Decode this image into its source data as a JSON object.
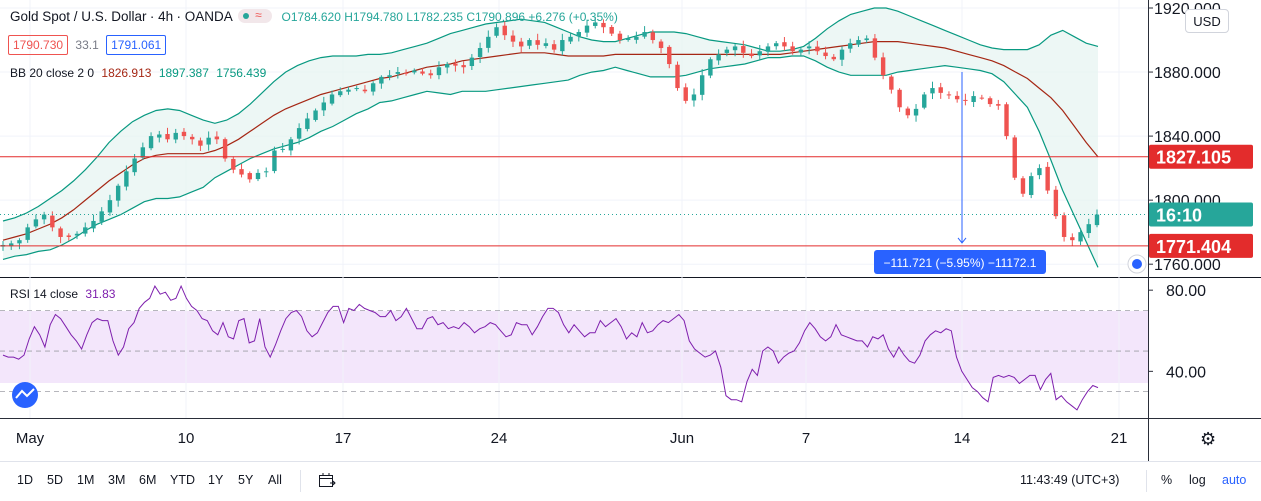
{
  "header": {
    "symbol": "Gold Spot / U.S. Dollar",
    "interval": "4h",
    "exchange": "OANDA",
    "open": "O1784.620",
    "high": "H1794.780",
    "low": "L1782.235",
    "close": "C1790.896",
    "change": "+6.276 (+0.35%)",
    "sell": "1790.730",
    "spread": "33.1",
    "buy": "1791.061"
  },
  "bb_legend": {
    "name": "BB 20 close 2 0",
    "basis": "1826.913",
    "upper": "1897.387",
    "lower": "1756.439"
  },
  "rsi_legend": {
    "name": "RSI 14 close",
    "value": "31.83"
  },
  "currency_button": "USD",
  "measure_label": "−111.721 (−5.95%) −11172.1",
  "price_labels": {
    "upper_line": "1827.105",
    "countdown": "16:10",
    "lower_line": "1771.404"
  },
  "colors": {
    "up": "#26a69a",
    "down": "#ef5350",
    "bb": "#089981",
    "basis": "#a52714",
    "rsi": "#7e1fad",
    "rsi_band": "#f3e6fb",
    "hline": "#e32c2c",
    "measure": "#2962ff"
  },
  "bottom_bar": {
    "timeframes": [
      "1D",
      "5D",
      "1M",
      "3M",
      "6M",
      "YTD",
      "1Y",
      "5Y",
      "All"
    ],
    "clock": "11:43:49 (UTC+3)",
    "percent": "%",
    "log": "log",
    "auto": "auto"
  },
  "chart_data": [
    {
      "type": "candlestick",
      "title": "Gold Spot / U.S. Dollar · 4h · OANDA",
      "x_ticks": [
        "May",
        "10",
        "17",
        "24",
        "Jun",
        "7",
        "14",
        "21"
      ],
      "y_ticks": [
        "1920.000",
        "1880.000",
        "1840.000",
        "1800.000",
        "1760.000"
      ],
      "ylim": [
        1752,
        1925
      ],
      "horizontal_lines": [
        1827.105,
        1771.404
      ],
      "series": [
        {
          "name": "Close",
          "values": [
            1772,
            1773,
            1775,
            1783,
            1788,
            1791,
            1783,
            1777,
            1777,
            1779,
            1783,
            1787,
            1793,
            1800,
            1809,
            1818,
            1826,
            1833,
            1840,
            1841,
            1838,
            1842,
            1840,
            1838,
            1834,
            1839,
            1838,
            1826,
            1819,
            1816,
            1813,
            1817,
            1818,
            1831,
            1832,
            1838,
            1845,
            1851,
            1856,
            1861,
            1866,
            1868,
            1869,
            1870,
            1868,
            1873,
            1877,
            1878,
            1880,
            1879,
            1881,
            1879,
            1878,
            1883,
            1885,
            1884,
            1883,
            1889,
            1895,
            1902,
            1908,
            1903,
            1899,
            1896,
            1900,
            1897,
            1898,
            1894,
            1900,
            1902,
            1905,
            1909,
            1911,
            1908,
            1904,
            1900,
            1901,
            1902,
            1905,
            1900,
            1895,
            1885,
            1870,
            1862,
            1866,
            1878,
            1888,
            1891,
            1894,
            1896,
            1892,
            1890,
            1893,
            1896,
            1898,
            1896,
            1893,
            1894,
            1896,
            1893,
            1890,
            1888,
            1894,
            1898,
            1900,
            1901,
            1889,
            1878,
            1869,
            1858,
            1853,
            1857,
            1866,
            1870,
            1867,
            1866,
            1863,
            1862,
            1865,
            1864,
            1860,
            1859,
            1840,
            1814,
            1804,
            1815,
            1820,
            1806,
            1790,
            1777,
            1775,
            1780,
            1785,
            1791
          ]
        },
        {
          "name": "BB upper",
          "values": [
            1787,
            1789,
            1792,
            1796,
            1801,
            1806,
            1812,
            1819,
            1827,
            1836,
            1843,
            1849,
            1853,
            1856,
            1857,
            1856,
            1853,
            1850,
            1848,
            1850,
            1854,
            1860,
            1867,
            1874,
            1880,
            1884,
            1887,
            1889,
            1890,
            1890,
            1890,
            1891,
            1891,
            1892,
            1894,
            1896,
            1898,
            1901,
            1904,
            1906,
            1908,
            1910,
            1911,
            1912,
            1913,
            1912,
            1911,
            1908,
            1905,
            1902,
            1900,
            1899,
            1899,
            1901,
            1903,
            1905,
            1905,
            1905,
            1904,
            1902,
            1900,
            1899,
            1898,
            1897,
            1895,
            1893,
            1893,
            1894,
            1896,
            1901,
            1907,
            1912,
            1916,
            1918,
            1920,
            1920,
            1918,
            1915,
            1912,
            1909,
            1906,
            1903,
            1900,
            1897,
            1895,
            1894,
            1894,
            1894,
            1897,
            1903,
            1906,
            1902,
            1898,
            1896
          ]
        },
        {
          "name": "BB basis",
          "values": [
            1775,
            1777,
            1779,
            1782,
            1785,
            1789,
            1794,
            1800,
            1806,
            1812,
            1817,
            1822,
            1826,
            1828,
            1829,
            1829,
            1829,
            1829,
            1831,
            1834,
            1838,
            1843,
            1848,
            1853,
            1857,
            1860,
            1863,
            1866,
            1868,
            1870,
            1872,
            1874,
            1876,
            1877,
            1879,
            1881,
            1883,
            1884,
            1885,
            1887,
            1888,
            1889,
            1890,
            1891,
            1892,
            1892,
            1892,
            1891,
            1890,
            1890,
            1890,
            1890,
            1891,
            1891,
            1891,
            1891,
            1891,
            1891,
            1891,
            1891,
            1891,
            1891,
            1891,
            1891,
            1891,
            1891,
            1891,
            1892,
            1893,
            1894,
            1895,
            1896,
            1897,
            1898,
            1899,
            1899,
            1899,
            1898,
            1897,
            1896,
            1895,
            1893,
            1891,
            1889,
            1887,
            1884,
            1880,
            1876,
            1870,
            1864,
            1856,
            1846,
            1836,
            1827
          ]
        },
        {
          "name": "BB lower",
          "values": [
            1763,
            1765,
            1766,
            1768,
            1769,
            1772,
            1776,
            1781,
            1785,
            1788,
            1791,
            1795,
            1799,
            1801,
            1801,
            1802,
            1805,
            1808,
            1814,
            1818,
            1822,
            1826,
            1829,
            1832,
            1834,
            1836,
            1839,
            1843,
            1846,
            1850,
            1854,
            1857,
            1861,
            1862,
            1864,
            1866,
            1868,
            1867,
            1866,
            1868,
            1868,
            1868,
            1869,
            1870,
            1871,
            1872,
            1873,
            1874,
            1875,
            1878,
            1880,
            1881,
            1883,
            1881,
            1879,
            1877,
            1877,
            1877,
            1878,
            1880,
            1882,
            1883,
            1884,
            1885,
            1887,
            1889,
            1889,
            1890,
            1890,
            1887,
            1883,
            1880,
            1878,
            1878,
            1878,
            1878,
            1880,
            1881,
            1882,
            1883,
            1884,
            1883,
            1882,
            1881,
            1879,
            1874,
            1866,
            1858,
            1843,
            1825,
            1806,
            1790,
            1774,
            1758
          ]
        }
      ]
    },
    {
      "type": "line",
      "title": "RSI 14 close",
      "y_ticks": [
        "80.00",
        "40.00"
      ],
      "ylim": [
        17,
        86
      ],
      "bands": [
        30,
        50,
        70
      ],
      "series": [
        {
          "name": "RSI 14 close",
          "values": [
            48,
            47,
            47,
            46,
            48,
            56,
            62,
            58,
            52,
            63,
            68,
            66,
            62,
            58,
            55,
            51,
            58,
            64,
            66,
            65,
            65,
            55,
            48,
            52,
            61,
            64,
            71,
            74,
            76,
            82,
            78,
            79,
            75,
            76,
            82,
            76,
            72,
            70,
            66,
            65,
            60,
            58,
            64,
            57,
            56,
            65,
            66,
            54,
            55,
            66,
            52,
            47,
            53,
            60,
            66,
            69,
            70,
            67,
            60,
            57,
            59,
            64,
            69,
            72,
            72,
            64,
            71,
            70,
            73,
            71,
            70,
            69,
            67,
            67,
            70,
            65,
            67,
            71,
            66,
            61,
            61,
            66,
            67,
            63,
            64,
            61,
            62,
            61,
            64,
            62,
            59,
            61,
            62,
            64,
            63,
            60,
            57,
            58,
            64,
            63,
            63,
            58,
            62,
            67,
            71,
            71,
            69,
            63,
            59,
            63,
            60,
            57,
            59,
            59,
            65,
            62,
            64,
            66,
            62,
            56,
            59,
            57,
            64,
            59,
            60,
            63,
            65,
            64,
            66,
            68,
            65,
            55,
            51,
            49,
            47,
            48,
            50,
            42,
            28,
            26,
            26,
            25,
            35,
            41,
            38,
            50,
            52,
            50,
            44,
            47,
            49,
            50,
            54,
            60,
            64,
            61,
            57,
            55,
            57,
            63,
            58,
            57,
            56,
            55,
            55,
            52,
            57,
            56,
            58,
            51,
            47,
            52,
            48,
            45,
            44,
            48,
            55,
            58,
            60,
            59,
            61,
            60,
            47,
            40,
            36,
            32,
            30,
            27,
            25,
            37,
            38,
            37,
            38,
            37,
            34,
            36,
            38,
            38,
            31,
            36,
            39,
            26,
            28,
            25,
            23,
            21,
            26,
            30,
            33,
            32
          ]
        }
      ]
    }
  ]
}
